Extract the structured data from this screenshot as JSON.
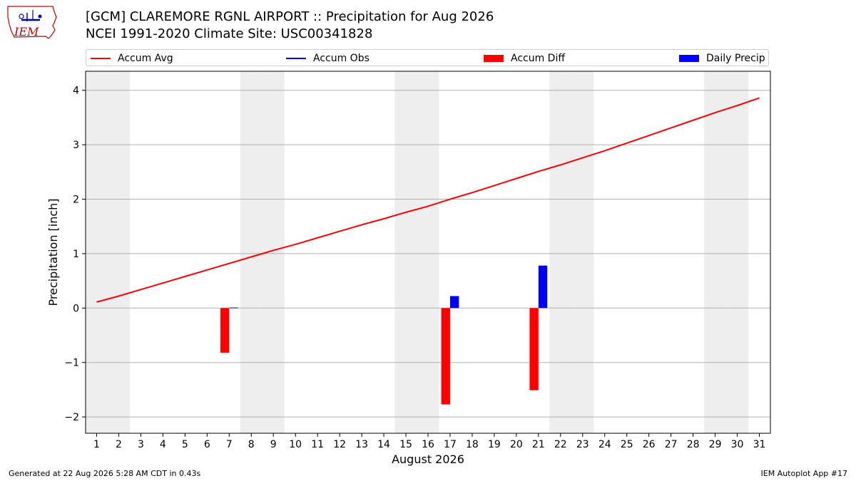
{
  "header": {
    "title_line1": "[GCM] CLAREMORE RGNL AIRPORT :: Precipitation for Aug 2026",
    "title_line2": "NCEI 1991-2020 Climate Site: USC00341828"
  },
  "logo": {
    "text": "IEM",
    "icon": "iem-iowa-logo"
  },
  "footer": {
    "left": "Generated at 22 Aug 2026 5:28 AM CDT in 0.43s",
    "right": "IEM Autoplot App #17"
  },
  "legend": [
    {
      "label": "Accum Avg",
      "kind": "line",
      "color": "#ff0000"
    },
    {
      "label": "Accum Obs",
      "kind": "line",
      "color": "#0000ff"
    },
    {
      "label": "Accum Diff",
      "kind": "patch",
      "color": "#ff0000"
    },
    {
      "label": "Daily Precip",
      "kind": "patch",
      "color": "#0000ff"
    }
  ],
  "chart_data": {
    "type": "bar",
    "xlabel": "August 2026",
    "ylabel": "Precipitation [inch]",
    "xlim": [
      0.5,
      31.5
    ],
    "ylim": [
      -2.3,
      4.35
    ],
    "yticks": [
      -2,
      -1,
      0,
      1,
      2,
      3,
      4
    ],
    "ytick_labels": [
      "−2",
      "−1",
      "0",
      "1",
      "2",
      "3",
      "4"
    ],
    "x": [
      1,
      2,
      3,
      4,
      5,
      6,
      7,
      8,
      9,
      10,
      11,
      12,
      13,
      14,
      15,
      16,
      17,
      18,
      19,
      20,
      21,
      22,
      23,
      24,
      25,
      26,
      27,
      28,
      29,
      30,
      31
    ],
    "weekend_days": [
      1,
      2,
      8,
      9,
      15,
      16,
      22,
      23,
      29,
      30
    ],
    "grid": "y",
    "legend_position": "top",
    "series": [
      {
        "name": "Accum Avg",
        "type": "line",
        "color": "#ff0000",
        "x": [
          1,
          2,
          3,
          4,
          5,
          6,
          7,
          8,
          9,
          10,
          11,
          12,
          13,
          14,
          15,
          16,
          17,
          18,
          19,
          20,
          21,
          22,
          23,
          24,
          25,
          26,
          27,
          28,
          29,
          30,
          31
        ],
        "values": [
          0.11,
          0.22,
          0.34,
          0.46,
          0.58,
          0.7,
          0.82,
          0.94,
          1.06,
          1.17,
          1.29,
          1.41,
          1.53,
          1.64,
          1.76,
          1.87,
          2.0,
          2.12,
          2.25,
          2.38,
          2.51,
          2.63,
          2.76,
          2.89,
          3.03,
          3.17,
          3.31,
          3.45,
          3.59,
          3.72,
          3.86
        ]
      },
      {
        "name": "Accum Diff",
        "type": "bar",
        "color": "#ff0000",
        "offset": -0.2,
        "x": [
          7,
          17,
          21
        ],
        "values": [
          -0.82,
          -1.77,
          -1.51
        ]
      },
      {
        "name": "Daily Precip",
        "type": "bar",
        "color": "#0000ff",
        "offset": 0.2,
        "x": [
          7,
          17,
          21
        ],
        "values": [
          0.01,
          0.22,
          0.78
        ]
      },
      {
        "name": "Accum Obs",
        "type": "line",
        "color": "#0000ff",
        "x": [],
        "values": []
      }
    ]
  }
}
